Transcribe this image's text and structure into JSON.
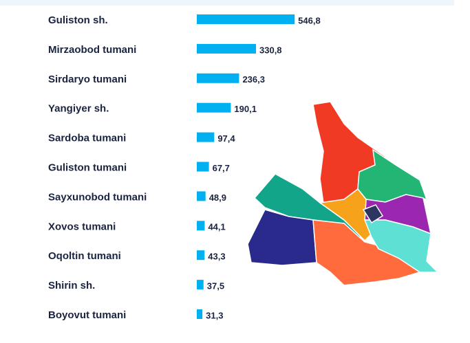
{
  "chart_data": {
    "type": "bar",
    "orientation": "horizontal",
    "categories": [
      "Guliston sh.",
      "Mirzaobod tumani",
      "Sirdaryo tumani",
      "Yangiyer sh.",
      "Sardoba tumani",
      "Guliston tumani",
      "Sayxunobod tumani",
      "Xovos tumani",
      "Oqoltin tumani",
      "Shirin sh.",
      "Boyovut tumani"
    ],
    "values": [
      546.8,
      330.8,
      236.3,
      190.1,
      97.4,
      67.7,
      48.9,
      44.1,
      43.3,
      37.5,
      31.3
    ],
    "value_labels": [
      "546,8",
      "330,8",
      "236,3",
      "190,1",
      "97,4",
      "67,7",
      "48,9",
      "44,1",
      "43,3",
      "37,5",
      "31,3"
    ],
    "color": "#00b0f0"
  }
}
